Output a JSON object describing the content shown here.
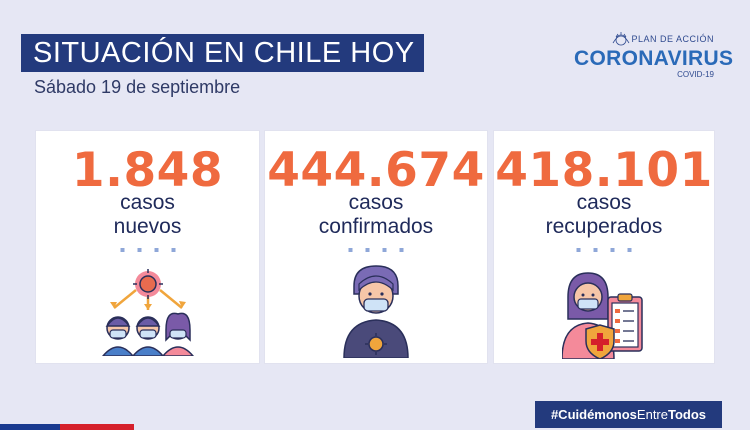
{
  "header": {
    "title": "SITUACIÓN EN CHILE HOY",
    "date": "Sábado 19 de septiembre"
  },
  "logo": {
    "top": "PLAN DE ACCIÓN",
    "main": "CORONAVIRUS",
    "sub": "COVID-19",
    "emblem_icon": "government-emblem-icon"
  },
  "cards": [
    {
      "value": "1.848",
      "label_line1": "casos",
      "label_line2": "nuevos",
      "icon": "virus-spread-people-icon"
    },
    {
      "value": "444.674",
      "label_line1": "casos",
      "label_line2": "confirmados",
      "icon": "masked-person-virus-icon"
    },
    {
      "value": "418.101",
      "label_line1": "casos",
      "label_line2": "recuperados",
      "icon": "recovered-person-clipboard-icon"
    }
  ],
  "footer": {
    "hashtag_bold_1": "#Cuidémonos",
    "hashtag_light": "Entre",
    "hashtag_bold_2": "Todos"
  },
  "colors": {
    "background": "#e6e7f4",
    "navy": "#233a7d",
    "orange": "#ef6a3f",
    "text_dark": "#1f2a5a",
    "flag_blue": "#1a3a8f",
    "flag_red": "#d5202b"
  }
}
